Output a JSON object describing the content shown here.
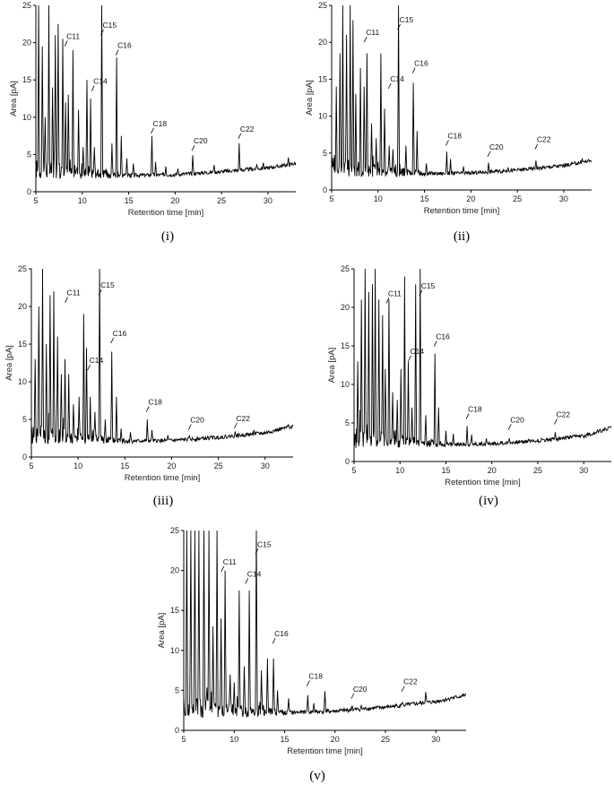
{
  "chart_data": [
    {
      "type": "line",
      "panel": "i",
      "caption": "(i)",
      "xlabel": "Retention time [min]",
      "ylabel": "Area [pA]",
      "xlim": [
        5,
        33
      ],
      "ylim": [
        0,
        25
      ],
      "xticks": [
        5,
        10,
        15,
        20,
        25,
        30
      ],
      "yticks": [
        0,
        5,
        10,
        15,
        20,
        25
      ],
      "baseline": [
        [
          5,
          3.1
        ],
        [
          10,
          2.6
        ],
        [
          15,
          2.2
        ],
        [
          20,
          2.3
        ],
        [
          25,
          2.7
        ],
        [
          30,
          3.2
        ],
        [
          33,
          3.8
        ]
      ],
      "peaks": [
        [
          5.3,
          25
        ],
        [
          5.7,
          19.5
        ],
        [
          6.0,
          10
        ],
        [
          6.4,
          25
        ],
        [
          6.8,
          14
        ],
        [
          7.1,
          21
        ],
        [
          7.4,
          22.5
        ],
        [
          7.9,
          20.5
        ],
        [
          8.2,
          12
        ],
        [
          8.5,
          13
        ],
        [
          9.0,
          19
        ],
        [
          9.6,
          11
        ],
        [
          10.1,
          6
        ],
        [
          10.5,
          15
        ],
        [
          10.9,
          12.5
        ],
        [
          11.3,
          6
        ],
        [
          12.1,
          25
        ],
        [
          13.2,
          6.5
        ],
        [
          13.7,
          18
        ],
        [
          14.2,
          7.5
        ],
        [
          14.8,
          4.5
        ],
        [
          15.5,
          3.8
        ],
        [
          17.5,
          7.5
        ],
        [
          17.9,
          4
        ],
        [
          19.0,
          3.4
        ],
        [
          20.3,
          3.1
        ],
        [
          21.9,
          4.9
        ],
        [
          24.2,
          3.6
        ],
        [
          26.9,
          6.5
        ],
        [
          28.8,
          3.7
        ],
        [
          29.5,
          3.9
        ],
        [
          32.2,
          4.6
        ]
      ],
      "annotations": [
        {
          "text": "C11",
          "x": 8.2,
          "y": 20.0
        },
        {
          "text": "C14",
          "x": 11.1,
          "y": 14.0
        },
        {
          "text": "C15",
          "x": 12.1,
          "y": 21.5
        },
        {
          "text": "C16",
          "x": 13.7,
          "y": 18.8
        },
        {
          "text": "C18",
          "x": 17.5,
          "y": 8.3
        },
        {
          "text": "C20",
          "x": 21.9,
          "y": 6.0
        },
        {
          "text": "C22",
          "x": 26.9,
          "y": 7.6
        }
      ]
    },
    {
      "type": "line",
      "panel": "ii",
      "caption": "(ii)",
      "xlabel": "Retention time [min]",
      "ylabel": "Area [pA]",
      "xlim": [
        5,
        33
      ],
      "ylim": [
        0,
        25
      ],
      "xticks": [
        5,
        10,
        15,
        20,
        25,
        30
      ],
      "yticks": [
        0,
        5,
        10,
        15,
        20,
        25
      ],
      "baseline": [
        [
          5,
          3.1
        ],
        [
          10,
          2.6
        ],
        [
          15,
          2.2
        ],
        [
          20,
          2.3
        ],
        [
          25,
          2.7
        ],
        [
          30,
          3.3
        ],
        [
          33,
          4.0
        ]
      ],
      "peaks": [
        [
          5.5,
          14
        ],
        [
          5.9,
          18.5
        ],
        [
          6.2,
          25
        ],
        [
          6.6,
          21
        ],
        [
          7.0,
          25
        ],
        [
          7.3,
          23
        ],
        [
          7.6,
          13
        ],
        [
          8.1,
          16.5
        ],
        [
          8.5,
          14
        ],
        [
          8.8,
          18.5
        ],
        [
          9.3,
          9
        ],
        [
          9.8,
          7
        ],
        [
          10.3,
          18.5
        ],
        [
          10.7,
          11
        ],
        [
          11.2,
          6
        ],
        [
          11.6,
          5.5
        ],
        [
          12.2,
          25
        ],
        [
          13.0,
          6
        ],
        [
          13.8,
          14.5
        ],
        [
          14.2,
          8
        ],
        [
          15.2,
          3.6
        ],
        [
          17.4,
          5.2
        ],
        [
          17.8,
          4.2
        ],
        [
          19.2,
          3.2
        ],
        [
          21.9,
          3.7
        ],
        [
          24.0,
          3.0
        ],
        [
          27.0,
          4.0
        ],
        [
          29.0,
          3.4
        ],
        [
          32.0,
          4.2
        ]
      ],
      "annotations": [
        {
          "text": "C11",
          "x": 8.6,
          "y": 20.5
        },
        {
          "text": "C14",
          "x": 11.2,
          "y": 14.2
        },
        {
          "text": "C15",
          "x": 12.2,
          "y": 22.2
        },
        {
          "text": "C16",
          "x": 13.8,
          "y": 16.3
        },
        {
          "text": "C18",
          "x": 17.4,
          "y": 6.5
        },
        {
          "text": "C20",
          "x": 21.9,
          "y": 5.0
        },
        {
          "text": "C22",
          "x": 27.0,
          "y": 6.0
        }
      ]
    },
    {
      "type": "line",
      "panel": "iii",
      "caption": "(iii)",
      "xlabel": "Retention time [min]",
      "ylabel": "Area [pA]",
      "xlim": [
        5,
        33
      ],
      "ylim": [
        0,
        25
      ],
      "xticks": [
        5,
        10,
        15,
        20,
        25,
        30
      ],
      "yticks": [
        0,
        5,
        10,
        15,
        20,
        25
      ],
      "baseline": [
        [
          5,
          3.0
        ],
        [
          10,
          2.6
        ],
        [
          15,
          2.1
        ],
        [
          20,
          2.2
        ],
        [
          25,
          2.6
        ],
        [
          30,
          3.2
        ],
        [
          33,
          4.1
        ]
      ],
      "peaks": [
        [
          5.4,
          13
        ],
        [
          5.8,
          20
        ],
        [
          6.2,
          25
        ],
        [
          6.6,
          15
        ],
        [
          7.0,
          21.5
        ],
        [
          7.4,
          22
        ],
        [
          7.8,
          16
        ],
        [
          8.2,
          11
        ],
        [
          8.6,
          13
        ],
        [
          9.0,
          11
        ],
        [
          9.5,
          7
        ],
        [
          10.1,
          8
        ],
        [
          10.6,
          19
        ],
        [
          10.9,
          14.5
        ],
        [
          11.3,
          8
        ],
        [
          11.8,
          6
        ],
        [
          12.3,
          25
        ],
        [
          12.9,
          5
        ],
        [
          13.6,
          14
        ],
        [
          14.1,
          8
        ],
        [
          14.6,
          3.8
        ],
        [
          15.6,
          3.3
        ],
        [
          17.4,
          5.0
        ],
        [
          17.9,
          3.6
        ],
        [
          19.6,
          2.9
        ],
        [
          21.9,
          2.8
        ],
        [
          24.3,
          2.8
        ],
        [
          26.8,
          3.4
        ],
        [
          28.8,
          3.6
        ],
        [
          32.5,
          4.3
        ]
      ],
      "annotations": [
        {
          "text": "C11",
          "x": 8.7,
          "y": 21.0
        },
        {
          "text": "C14",
          "x": 11.1,
          "y": 12.0
        },
        {
          "text": "C15",
          "x": 12.3,
          "y": 22.0
        },
        {
          "text": "C16",
          "x": 13.6,
          "y": 15.6
        },
        {
          "text": "C18",
          "x": 17.4,
          "y": 6.5
        },
        {
          "text": "C20",
          "x": 21.9,
          "y": 4.1
        },
        {
          "text": "C22",
          "x": 26.8,
          "y": 4.3
        }
      ]
    },
    {
      "type": "line",
      "panel": "iv",
      "caption": "(iv)",
      "xlabel": "Retention time [min]",
      "ylabel": "Area [pA]",
      "xlim": [
        5,
        33
      ],
      "ylim": [
        0,
        25
      ],
      "xticks": [
        5,
        10,
        15,
        20,
        25,
        30
      ],
      "yticks": [
        0,
        5,
        10,
        15,
        20,
        25
      ],
      "baseline": [
        [
          5,
          3.1
        ],
        [
          10,
          2.7
        ],
        [
          15,
          2.2
        ],
        [
          20,
          2.3
        ],
        [
          25,
          2.7
        ],
        [
          30,
          3.3
        ],
        [
          33,
          4.4
        ]
      ],
      "peaks": [
        [
          5.4,
          13
        ],
        [
          5.8,
          21
        ],
        [
          6.2,
          25
        ],
        [
          6.6,
          22
        ],
        [
          7.0,
          23
        ],
        [
          7.3,
          25
        ],
        [
          7.7,
          21
        ],
        [
          8.1,
          19
        ],
        [
          8.4,
          12
        ],
        [
          8.8,
          21
        ],
        [
          9.2,
          9
        ],
        [
          9.7,
          8
        ],
        [
          10.1,
          12
        ],
        [
          10.5,
          24
        ],
        [
          10.9,
          13
        ],
        [
          11.3,
          7
        ],
        [
          11.7,
          23
        ],
        [
          12.2,
          25
        ],
        [
          12.8,
          6
        ],
        [
          13.8,
          14
        ],
        [
          14.2,
          7
        ],
        [
          15.0,
          4
        ],
        [
          15.8,
          3.6
        ],
        [
          17.3,
          4.6
        ],
        [
          17.8,
          3.5
        ],
        [
          19.4,
          3.0
        ],
        [
          21.9,
          3.0
        ],
        [
          24.0,
          2.9
        ],
        [
          26.9,
          3.8
        ],
        [
          29.3,
          3.4
        ],
        [
          32.7,
          4.5
        ]
      ],
      "annotations": [
        {
          "text": "C11",
          "x": 8.6,
          "y": 21.0
        },
        {
          "text": "C14",
          "x": 11.0,
          "y": 13.5
        },
        {
          "text": "C15",
          "x": 12.2,
          "y": 22.0
        },
        {
          "text": "C16",
          "x": 13.8,
          "y": 15.4
        },
        {
          "text": "C18",
          "x": 17.3,
          "y": 6.0
        },
        {
          "text": "C20",
          "x": 21.9,
          "y": 4.6
        },
        {
          "text": "C22",
          "x": 26.9,
          "y": 5.3
        }
      ]
    },
    {
      "type": "line",
      "panel": "v",
      "caption": "(v)",
      "xlabel": "Retention time [min]",
      "ylabel": "Area [pA]",
      "xlim": [
        5,
        33
      ],
      "ylim": [
        0,
        25
      ],
      "xticks": [
        5,
        10,
        15,
        20,
        25,
        30
      ],
      "yticks": [
        0,
        5,
        10,
        15,
        20,
        25
      ],
      "baseline": [
        [
          5,
          2.9
        ],
        [
          10,
          2.4
        ],
        [
          15,
          2.2
        ],
        [
          20,
          2.4
        ],
        [
          25,
          2.9
        ],
        [
          30,
          3.6
        ],
        [
          33,
          4.4
        ]
      ],
      "peaks": [
        [
          5.3,
          25
        ],
        [
          5.7,
          25
        ],
        [
          6.1,
          25
        ],
        [
          6.5,
          25
        ],
        [
          7.0,
          25
        ],
        [
          7.5,
          25
        ],
        [
          7.9,
          13
        ],
        [
          8.3,
          25
        ],
        [
          8.7,
          14
        ],
        [
          9.1,
          20
        ],
        [
          9.6,
          7
        ],
        [
          10.0,
          6
        ],
        [
          10.5,
          17.5
        ],
        [
          11.0,
          8
        ],
        [
          11.5,
          17.5
        ],
        [
          12.2,
          25
        ],
        [
          12.7,
          7.5
        ],
        [
          13.3,
          9
        ],
        [
          13.9,
          9
        ],
        [
          14.3,
          5
        ],
        [
          15.4,
          4
        ],
        [
          17.3,
          4.4
        ],
        [
          17.9,
          3.4
        ],
        [
          19.0,
          4.9
        ],
        [
          21.7,
          3.1
        ],
        [
          22.6,
          3.1
        ],
        [
          26.7,
          3.5
        ],
        [
          29.0,
          4.8
        ],
        [
          31.5,
          4.1
        ]
      ],
      "annotations": [
        {
          "text": "C11",
          "x": 8.8,
          "y": 20.3
        },
        {
          "text": "C14",
          "x": 11.2,
          "y": 18.8
        },
        {
          "text": "C15",
          "x": 12.2,
          "y": 22.5
        },
        {
          "text": "C16",
          "x": 13.9,
          "y": 11.3
        },
        {
          "text": "C18",
          "x": 17.3,
          "y": 6.0
        },
        {
          "text": "C20",
          "x": 21.7,
          "y": 4.4
        },
        {
          "text": "C22",
          "x": 26.7,
          "y": 5.3
        }
      ]
    }
  ]
}
